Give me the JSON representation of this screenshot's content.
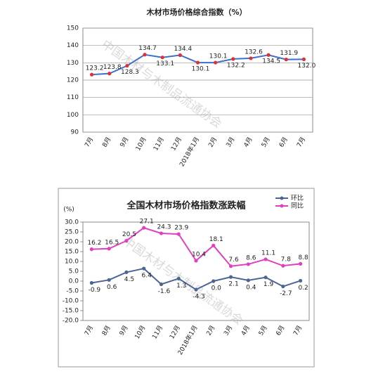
{
  "chart_data": [
    {
      "type": "line",
      "title": "木材市场价格综合指数（%）",
      "watermark": "中国木材与木制品流通协会",
      "categories": [
        "7月",
        "8月",
        "9月",
        "10月",
        "11月",
        "12月",
        "2018年1月",
        "2月",
        "3月",
        "4月",
        "5月",
        "6月",
        "7月"
      ],
      "series": [
        {
          "color": "#3b6fd0",
          "marker_color": "#e03030",
          "values": [
            123.2,
            123.8,
            128.3,
            134.7,
            133.1,
            134.4,
            130.1,
            130.1,
            132.2,
            132.6,
            134.5,
            131.9,
            132.0
          ],
          "value_labels": [
            "123.2",
            "123.8",
            "128.3",
            "134.7",
            "133.1",
            "134.4",
            "130.1",
            "130.1",
            "132.2",
            "132.6",
            "134.5",
            "131.9",
            "132.0"
          ]
        }
      ],
      "ylim": [
        90,
        150
      ],
      "yticks": [
        90,
        100,
        110,
        120,
        130,
        140,
        150
      ],
      "grid": true
    },
    {
      "type": "line",
      "title": "全国木材市场价格指数涨跌幅",
      "y_label": "(%)",
      "watermark": "中国木材与木制品流通协会",
      "categories": [
        "7月",
        "8月",
        "9月",
        "10月",
        "11月",
        "12月",
        "2018年1月",
        "2月",
        "3月",
        "4月",
        "5月",
        "6月",
        "7月"
      ],
      "series": [
        {
          "name": "环比",
          "color": "#4c6593",
          "values": [
            -0.9,
            0.6,
            4.5,
            6.4,
            -1.6,
            1.3,
            -4.3,
            0,
            2.1,
            0.4,
            1.9,
            -2.7,
            0.2
          ],
          "value_labels": [
            "-0.9",
            "0.6",
            "4.5",
            "6.4",
            "-1.6",
            "1.3",
            "-4.3",
            "0.0",
            "2.1",
            "0.4",
            "1.9",
            "-2.7",
            "0.2"
          ]
        },
        {
          "name": "同比",
          "color": "#e040c0",
          "values": [
            16.2,
            16.5,
            20.5,
            27.1,
            24.3,
            23.9,
            10.4,
            18.1,
            7.6,
            8.6,
            11.1,
            7.8,
            8.8
          ],
          "value_labels": [
            "16.2",
            "16.5",
            "20.5",
            "27.1",
            "24.3",
            "23.9",
            "10.4",
            "18.1",
            "7.6",
            "8.6",
            "11.1",
            "7.8",
            "8.8"
          ]
        }
      ],
      "ylim": [
        -20,
        30
      ],
      "yticks": [
        {
          "value": -20,
          "label": "-20.0"
        },
        {
          "value": -15,
          "label": "-15.0"
        },
        {
          "value": -10,
          "label": "-10.0"
        },
        {
          "value": -5,
          "label": "-5.0"
        },
        {
          "value": 0,
          "label": "0.0"
        },
        {
          "value": 5,
          "label": "5.0"
        },
        {
          "value": 10,
          "label": "10.0"
        },
        {
          "value": 15,
          "label": "15.0"
        },
        {
          "value": 20,
          "label": "20.0"
        },
        {
          "value": 25,
          "label": "25.0"
        },
        {
          "value": 30,
          "label": "30.0"
        }
      ],
      "grid": false,
      "legend": "top-right"
    }
  ]
}
